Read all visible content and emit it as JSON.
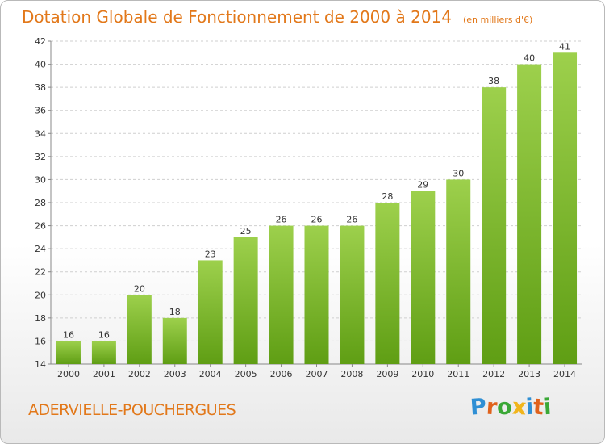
{
  "header": {
    "title": "Dotation Globale de Fonctionnement de 2000 à 2014",
    "unit": "(en milliers d'€)"
  },
  "footer": {
    "town": "ADERVIELLE-POUCHERGUES",
    "logo": "Proxiti"
  },
  "colors": {
    "bar_top": "#9dd04c",
    "bar_bottom": "#5f9e14",
    "title": "#e2781a",
    "grid": "#cfcfcf"
  },
  "chart_data": {
    "type": "bar",
    "categories": [
      "2000",
      "2001",
      "2002",
      "2003",
      "2004",
      "2005",
      "2006",
      "2007",
      "2008",
      "2009",
      "2010",
      "2011",
      "2012",
      "2013",
      "2014"
    ],
    "values": [
      16,
      16,
      20,
      18,
      23,
      25,
      26,
      26,
      26,
      28,
      29,
      30,
      38,
      40,
      41
    ],
    "ylim": [
      14,
      42
    ],
    "yticks": [
      14,
      16,
      18,
      20,
      22,
      24,
      26,
      28,
      30,
      32,
      34,
      36,
      38,
      40,
      42
    ],
    "grid": true,
    "data_labels": true
  }
}
